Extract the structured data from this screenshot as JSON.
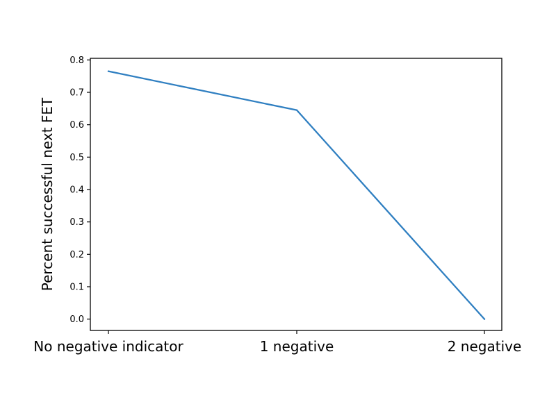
{
  "chart_data": {
    "type": "line",
    "title": "",
    "xlabel": "",
    "ylabel": "Percent successful next FET",
    "categories": [
      "No negative indicator",
      "1 negative",
      "2 negative"
    ],
    "series": [
      {
        "values": [
          0.765,
          0.645,
          0.0
        ],
        "color": "#2f7fc1"
      }
    ],
    "ylim": [
      -0.035,
      0.805
    ],
    "yticks": [
      0.0,
      0.1,
      0.2,
      0.3,
      0.4,
      0.5,
      0.6,
      0.7,
      0.8
    ],
    "ytick_labels": [
      "0.0",
      "0.1",
      "0.2",
      "0.3",
      "0.4",
      "0.5",
      "0.6",
      "0.7",
      "0.8"
    ],
    "grid": false,
    "legend": "none"
  }
}
